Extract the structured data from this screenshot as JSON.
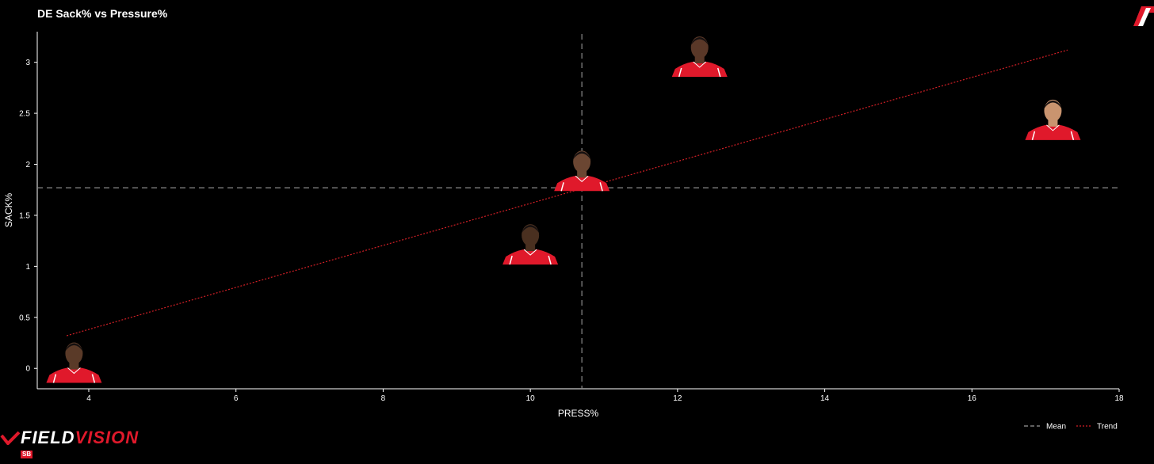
{
  "chart_data": {
    "type": "scatter",
    "title": "DE Sack% vs Pressure%",
    "xlabel": "PRESS%",
    "ylabel": "SACK%",
    "xlim": [
      3.3,
      18.0
    ],
    "ylim": [
      -0.2,
      3.3
    ],
    "x_ticks": [
      4,
      6,
      8,
      10,
      12,
      14,
      16,
      18
    ],
    "y_ticks": [
      0,
      0.5,
      1,
      1.5,
      2,
      2.5,
      3
    ],
    "grid": false,
    "mean": {
      "x": 10.7,
      "y": 1.77
    },
    "trend": {
      "x": [
        3.7,
        17.3
      ],
      "y": [
        0.32,
        3.12
      ]
    },
    "points": [
      {
        "x": 3.8,
        "y": -0.08,
        "skin": "#5a3a28"
      },
      {
        "x": 10.0,
        "y": 1.08,
        "skin": "#4a3020"
      },
      {
        "x": 10.7,
        "y": 1.8,
        "skin": "#6b4632"
      },
      {
        "x": 12.3,
        "y": 2.92,
        "skin": "#5a3828"
      },
      {
        "x": 17.1,
        "y": 2.3,
        "skin": "#c9946f"
      }
    ],
    "legend": {
      "position": "bottom-right",
      "items": [
        {
          "label": "Mean",
          "style": "dashed",
          "color": "#9a9a9a"
        },
        {
          "label": "Trend",
          "style": "dotted",
          "color": "#d21f26"
        }
      ]
    },
    "colors": {
      "jersey": "#e0192b",
      "jersey_trim": "#ffffff",
      "trend": "#d21f26",
      "mean": "#8a8a8a"
    }
  },
  "brand": {
    "name_a": "FIELD",
    "name_b": "VISION",
    "badge": "SB"
  }
}
